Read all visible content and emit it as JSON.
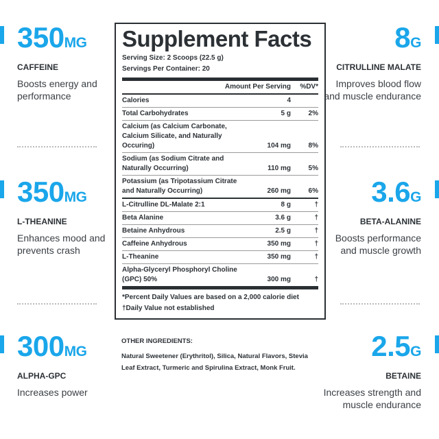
{
  "accent_color": "#1aa6ea",
  "left_stats": [
    {
      "value": "350",
      "unit": "MG",
      "label": "CAFFEINE",
      "desc": "Boosts energy and performance"
    },
    {
      "value": "350",
      "unit": "MG",
      "label": "L-THEANINE",
      "desc": "Enhances mood and prevents crash"
    },
    {
      "value": "300",
      "unit": "MG",
      "label": "ALPHA-GPC",
      "desc": "Increases power"
    }
  ],
  "right_stats": [
    {
      "value": "8",
      "unit": "G",
      "label": "CITRULLINE MALATE",
      "desc": "Improves blood flow and muscle endurance"
    },
    {
      "value": "3.6",
      "unit": "G",
      "label": "BETA-ALANINE",
      "desc": "Boosts performance and muscle growth"
    },
    {
      "value": "2.5",
      "unit": "G",
      "label": "BETAINE",
      "desc": "Increases strength and muscle endurance"
    }
  ],
  "facts": {
    "title": "Supplement Facts",
    "serving_size": "Serving Size: 2 Scoops (22.5 g)",
    "servings": "Servings Per Container: 20",
    "col_amount": "Amount Per Serving",
    "col_dv": "%DV*",
    "rows": [
      {
        "name": "Calories",
        "amount": "4",
        "dv": ""
      },
      {
        "name": "Total Carbohydrates",
        "amount": "5 g",
        "dv": "2%"
      },
      {
        "name": "Calcium (as Calcium Carbonate, Calcium Silicate, and Naturally Occuring)",
        "amount": "104 mg",
        "dv": "8%"
      },
      {
        "name": "Sodium (as Sodium Citrate and Naturally Occurring)",
        "amount": "110 mg",
        "dv": "5%"
      },
      {
        "name": "Potassium (as Tripotassium Citrate and Naturally Occurring)",
        "amount": "260 mg",
        "dv": "6%"
      },
      {
        "name": "L-Citrulline DL-Malate 2:1",
        "amount": "8 g",
        "dv": "†"
      },
      {
        "name": "Beta Alanine",
        "amount": "3.6 g",
        "dv": "†"
      },
      {
        "name": "Betaine Anhydrous",
        "amount": "2.5 g",
        "dv": "†"
      },
      {
        "name": "Caffeine Anhydrous",
        "amount": "350 mg",
        "dv": "†"
      },
      {
        "name": "L-Theanine",
        "amount": "350 mg",
        "dv": "†"
      },
      {
        "name": "Alpha-Glyceryl Phosphoryl Choline (GPC) 50%",
        "amount": "300 mg",
        "dv": "†"
      }
    ],
    "footnote1": "*Percent Daily Values are based on a 2,000 calorie diet",
    "footnote2": "†Daily Value not established"
  },
  "other_ingredients": {
    "title": "OTHER INGREDIENTS:",
    "text": "Natural Sweetener (Erythritol), Silica, Natural Flavors, Stevia Leaf Extract, Turmeric and Spirulina Extract, Monk Fruit."
  }
}
